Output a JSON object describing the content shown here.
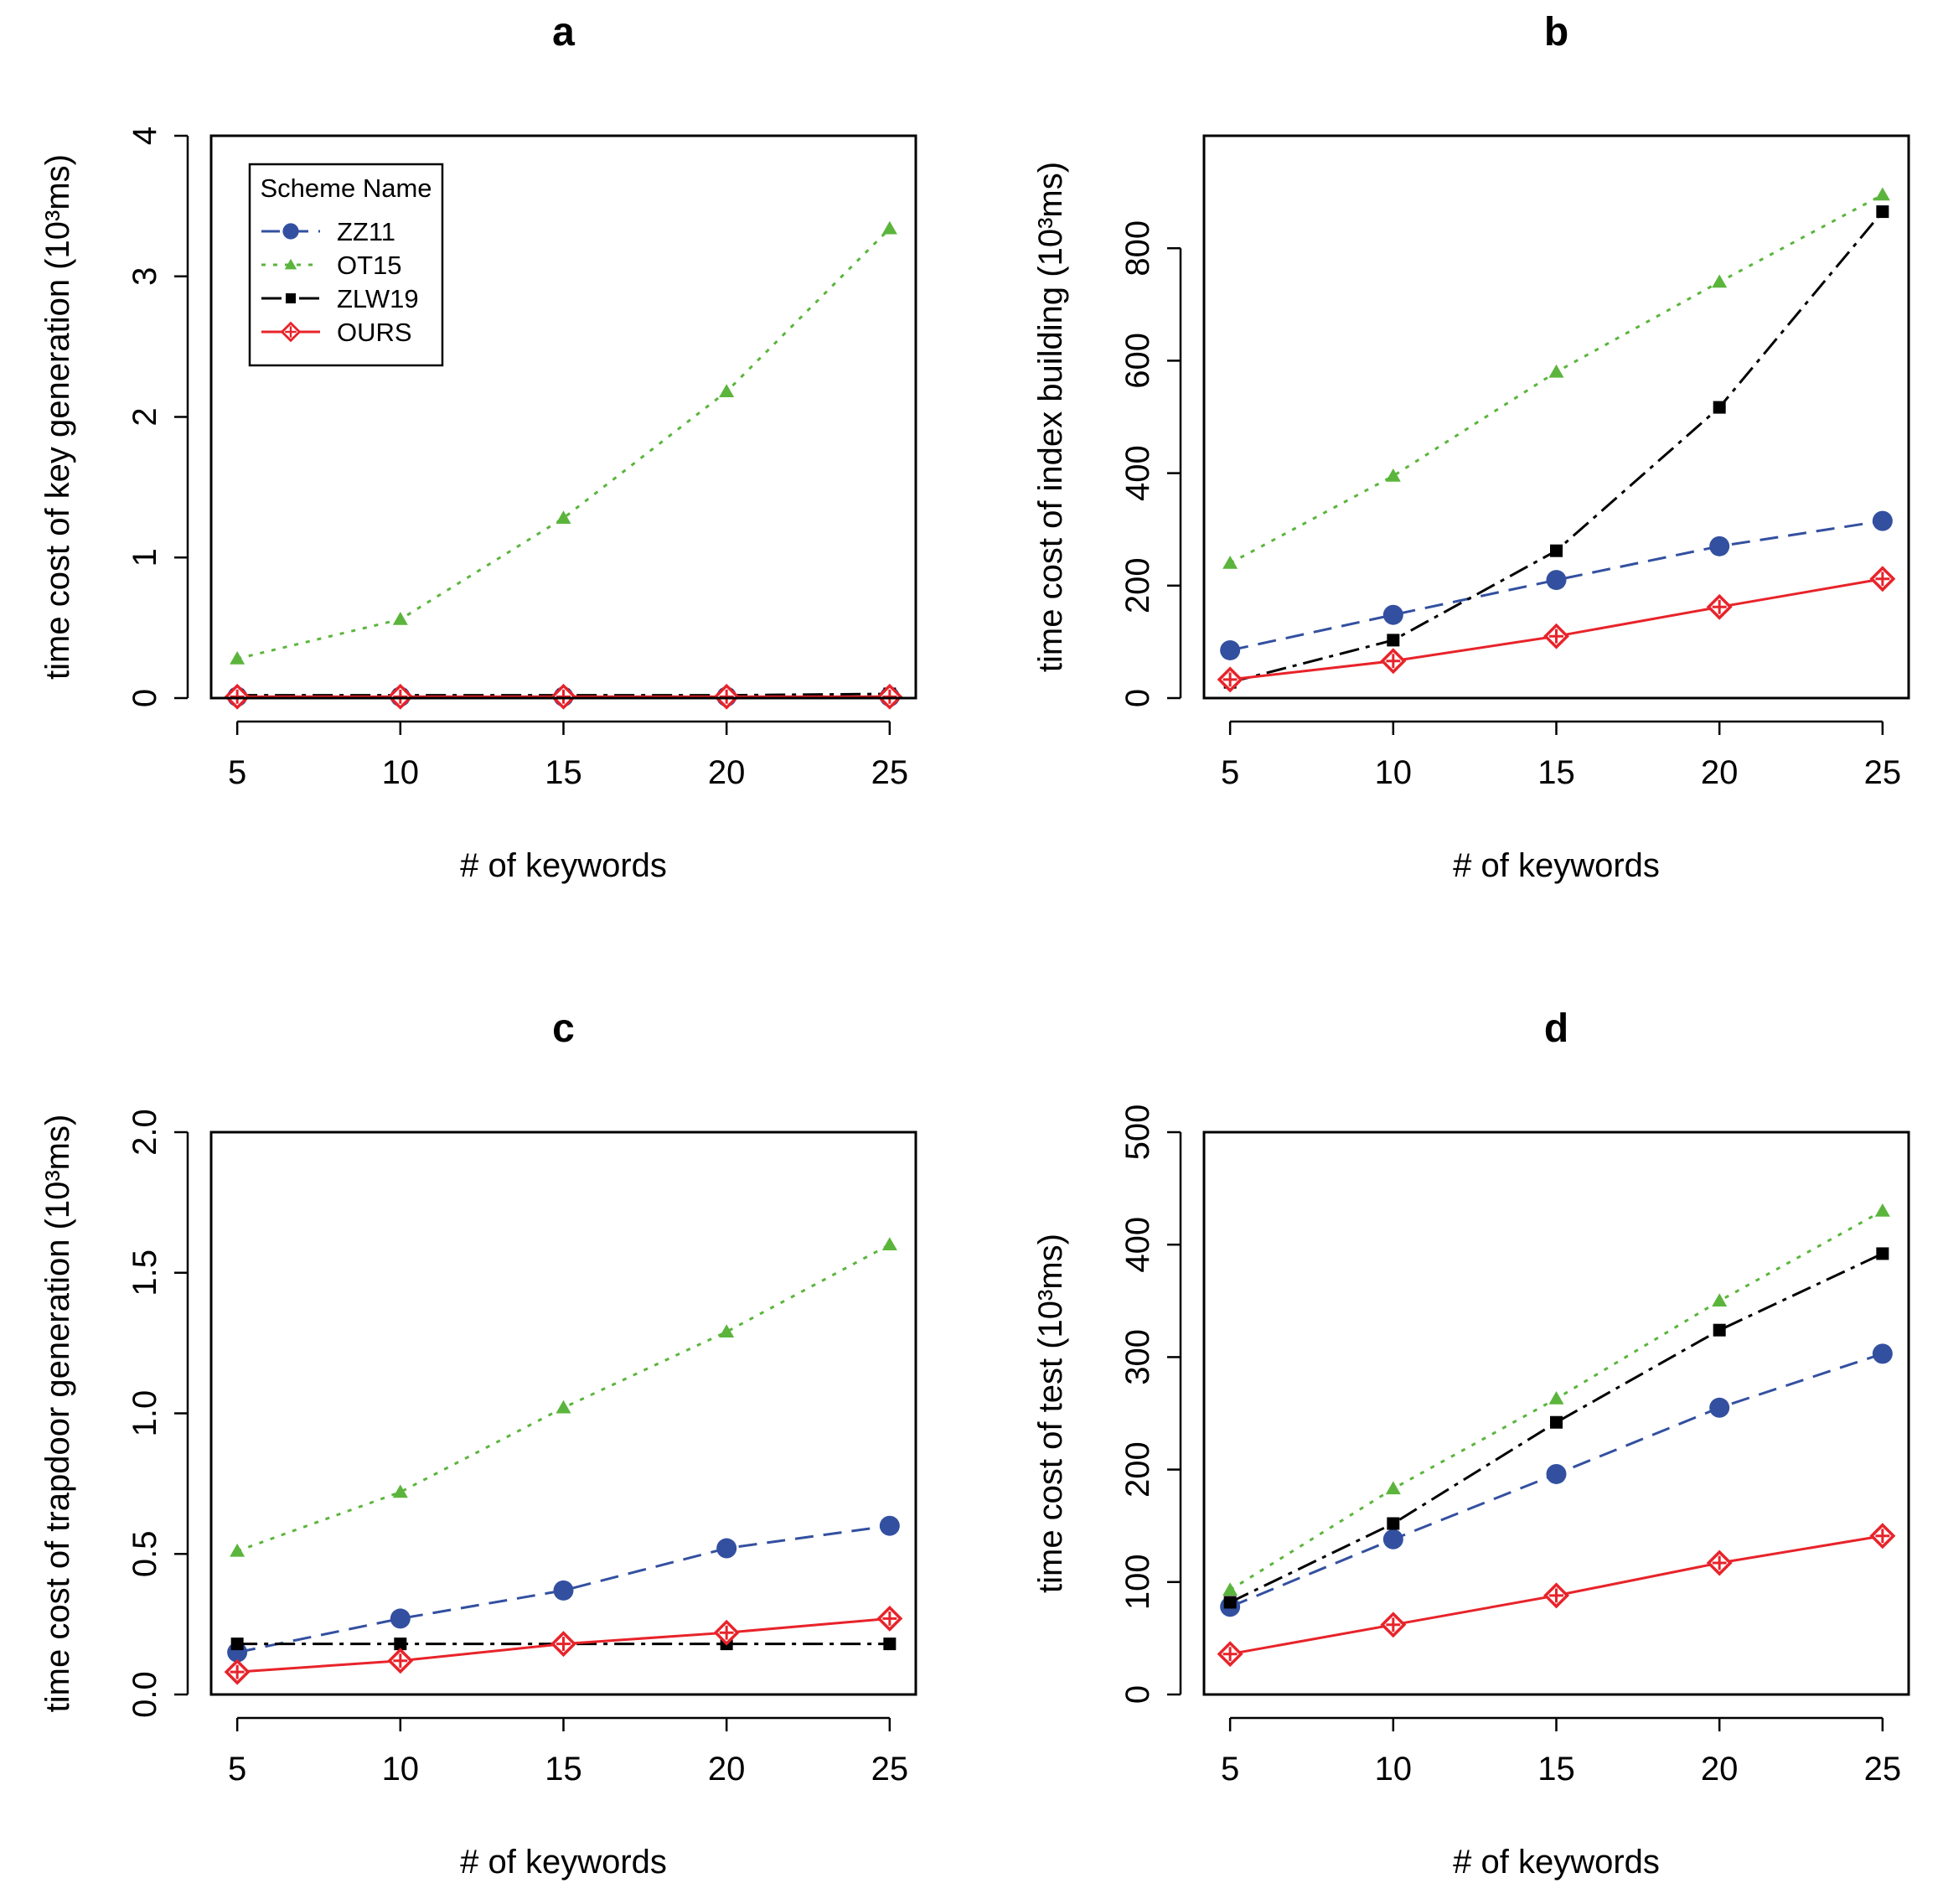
{
  "chart_data": [
    {
      "type": "line",
      "title": "a",
      "xlabel": "# of keywords",
      "ylabel": "time cost of key generation",
      "yunit": "(10³ms)",
      "x": [
        5,
        10,
        15,
        20,
        25
      ],
      "ylim": [
        0,
        4
      ],
      "yticks": [
        "0",
        "1",
        "2",
        "3",
        "4"
      ],
      "ytick_values": [
        0,
        1,
        2,
        3,
        4
      ],
      "series": [
        {
          "name": "ZZ11",
          "values": [
            0.01,
            0.01,
            0.01,
            0.01,
            0.01
          ]
        },
        {
          "name": "OT15",
          "values": [
            0.28,
            0.56,
            1.28,
            2.18,
            3.34
          ]
        },
        {
          "name": "ZLW19",
          "values": [
            0.02,
            0.02,
            0.02,
            0.02,
            0.03
          ]
        },
        {
          "name": "OURS",
          "values": [
            0.01,
            0.01,
            0.01,
            0.01,
            0.01
          ]
        }
      ],
      "legend": {
        "title": "Scheme Name",
        "position": "top-left"
      }
    },
    {
      "type": "line",
      "title": "b",
      "xlabel": "# of keywords",
      "ylabel": "time cost of index building",
      "yunit": "(10³ms)",
      "x": [
        5,
        10,
        15,
        20,
        25
      ],
      "ylim": [
        0,
        1000
      ],
      "yticks": [
        "0",
        "200",
        "400",
        "600",
        "800"
      ],
      "ytick_values": [
        0,
        200,
        400,
        600,
        800
      ],
      "series": [
        {
          "name": "ZZ11",
          "values": [
            85,
            148,
            210,
            270,
            315
          ]
        },
        {
          "name": "OT15",
          "values": [
            240,
            395,
            580,
            740,
            895
          ]
        },
        {
          "name": "ZLW19",
          "values": [
            28,
            103,
            262,
            517,
            865
          ]
        },
        {
          "name": "OURS",
          "values": [
            33,
            66,
            110,
            162,
            212
          ]
        }
      ]
    },
    {
      "type": "line",
      "title": "c",
      "xlabel": "# of keywords",
      "ylabel": "time cost of trapdoor generation",
      "yunit": "(10³ms)",
      "x": [
        5,
        10,
        15,
        20,
        25
      ],
      "ylim": [
        0,
        2
      ],
      "yticks": [
        "0.0",
        "0.5",
        "1.0",
        "1.5",
        "2.0"
      ],
      "ytick_values": [
        0,
        0.5,
        1.0,
        1.5,
        2.0
      ],
      "series": [
        {
          "name": "ZZ11",
          "values": [
            0.15,
            0.27,
            0.37,
            0.52,
            0.6
          ]
        },
        {
          "name": "OT15",
          "values": [
            0.51,
            0.72,
            1.02,
            1.29,
            1.6
          ]
        },
        {
          "name": "ZLW19",
          "values": [
            0.18,
            0.18,
            0.18,
            0.18,
            0.18
          ]
        },
        {
          "name": "OURS",
          "values": [
            0.08,
            0.12,
            0.18,
            0.22,
            0.27
          ]
        }
      ]
    },
    {
      "type": "line",
      "title": "d",
      "xlabel": "# of keywords",
      "ylabel": "time cost of test",
      "yunit": "(10³ms)",
      "x": [
        5,
        10,
        15,
        20,
        25
      ],
      "ylim": [
        0,
        500
      ],
      "yticks": [
        "0",
        "100",
        "200",
        "300",
        "400",
        "500"
      ],
      "ytick_values": [
        0,
        100,
        200,
        300,
        400,
        500
      ],
      "series": [
        {
          "name": "ZZ11",
          "values": [
            78,
            138,
            196,
            255,
            303
          ]
        },
        {
          "name": "OT15",
          "values": [
            93,
            183,
            263,
            350,
            430
          ]
        },
        {
          "name": "ZLW19",
          "values": [
            82,
            152,
            242,
            324,
            392
          ]
        },
        {
          "name": "OURS",
          "values": [
            36,
            62,
            88,
            117,
            141
          ]
        }
      ]
    }
  ],
  "styles": {
    "ZZ11": {
      "color": "#3350a0",
      "dash": "dashed",
      "marker": "circle"
    },
    "OT15": {
      "color": "#5bb53c",
      "dash": "dotted",
      "marker": "triangle"
    },
    "ZLW19": {
      "color": "#000000",
      "dash": "dashdot",
      "marker": "square"
    },
    "OURS": {
      "color": "#e8232a",
      "dash": "solid",
      "marker": "diamond-plus"
    }
  }
}
